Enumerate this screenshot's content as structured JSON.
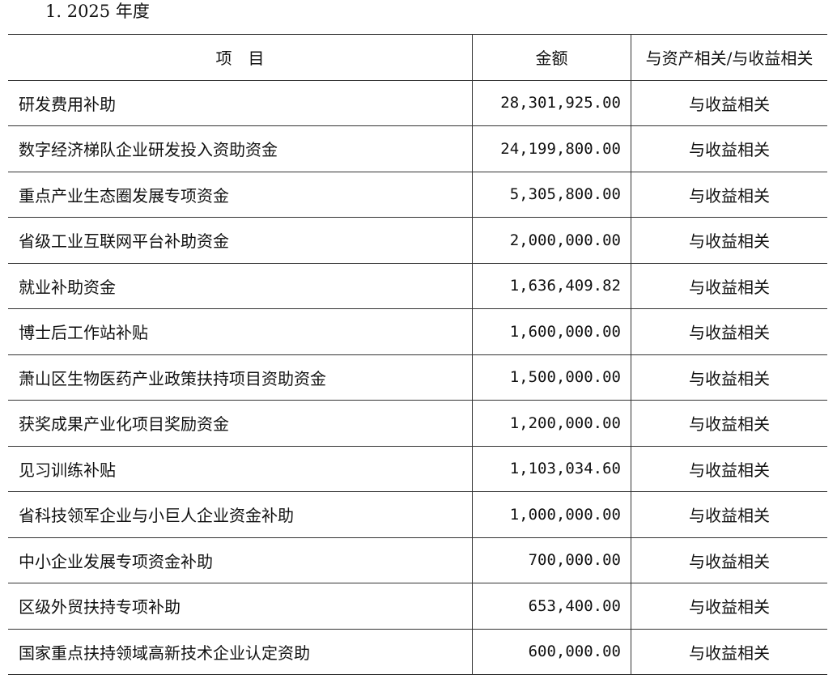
{
  "heading": "1. 2025 年度",
  "table": {
    "headers": [
      "项　目",
      "金额",
      "与资产相关/与收益相关"
    ],
    "rows": [
      {
        "item": "研发费用补助",
        "amount": "28,301,925.00",
        "relation": "与收益相关"
      },
      {
        "item": "数字经济梯队企业研发投入资助资金",
        "amount": "24,199,800.00",
        "relation": "与收益相关"
      },
      {
        "item": "重点产业生态圈发展专项资金",
        "amount": "5,305,800.00",
        "relation": "与收益相关"
      },
      {
        "item": "省级工业互联网平台补助资金",
        "amount": "2,000,000.00",
        "relation": "与收益相关"
      },
      {
        "item": "就业补助资金",
        "amount": "1,636,409.82",
        "relation": "与收益相关"
      },
      {
        "item": "博士后工作站补贴",
        "amount": "1,600,000.00",
        "relation": "与收益相关"
      },
      {
        "item": "萧山区生物医药产业政策扶持项目资助资金",
        "amount": "1,500,000.00",
        "relation": "与收益相关"
      },
      {
        "item": "获奖成果产业化项目奖励资金",
        "amount": "1,200,000.00",
        "relation": "与收益相关"
      },
      {
        "item": "见习训练补贴",
        "amount": "1,103,034.60",
        "relation": "与收益相关"
      },
      {
        "item": "省科技领军企业与小巨人企业资金补助",
        "amount": "1,000,000.00",
        "relation": "与收益相关"
      },
      {
        "item": "中小企业发展专项资金补助",
        "amount": "700,000.00",
        "relation": "与收益相关"
      },
      {
        "item": "区级外贸扶持专项补助",
        "amount": "653,400.00",
        "relation": "与收益相关"
      },
      {
        "item": "国家重点扶持领域高新技术企业认定资助",
        "amount": "600,000.00",
        "relation": "与收益相关"
      }
    ]
  }
}
